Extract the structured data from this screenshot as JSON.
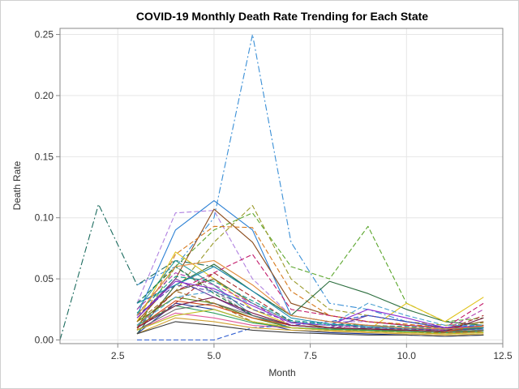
{
  "chart_data": {
    "type": "line",
    "title": "COVID-19 Monthly Death Rate Trending for Each State",
    "xlabel": "Month",
    "ylabel": "Death Rate",
    "xlim": [
      1,
      12.5
    ],
    "ylim": [
      -0.003,
      0.255
    ],
    "xticks": [
      2.5,
      5.0,
      7.5,
      10.0,
      12.5
    ],
    "xtick_labels": [
      "2.5",
      "5.0",
      "7.5",
      "10.0",
      "12.5"
    ],
    "yticks": [
      0.0,
      0.05,
      0.1,
      0.15,
      0.2,
      0.25
    ],
    "ytick_labels": [
      "0.00",
      "0.05",
      "0.10",
      "0.15",
      "0.20",
      "0.25"
    ],
    "grid": true,
    "legend": "none",
    "series": [
      {
        "color": "#3a8fd6",
        "dash": "8,3,2,3",
        "x": [
          3,
          4,
          5,
          6,
          7,
          8,
          9,
          10,
          11,
          12
        ],
        "y": [
          0.045,
          0.06,
          0.1,
          0.25,
          0.08,
          0.03,
          0.025,
          0.015,
          0.01,
          0.012
        ]
      },
      {
        "color": "#1b6b5e",
        "dash": "8,3,2,3",
        "x": [
          1,
          2,
          3,
          4,
          5,
          6,
          7,
          8,
          9,
          10,
          11,
          12
        ],
        "y": [
          0.0,
          0.111,
          0.045,
          0.065,
          0.06,
          0.04,
          0.02,
          0.015,
          0.012,
          0.01,
          0.008,
          0.01
        ]
      },
      {
        "color": "#2a7fd4",
        "dash": "",
        "x": [
          3,
          4,
          5,
          6,
          7,
          8,
          9,
          10,
          11,
          12
        ],
        "y": [
          0.02,
          0.09,
          0.114,
          0.09,
          0.02,
          0.015,
          0.012,
          0.01,
          0.008,
          0.009
        ]
      },
      {
        "color": "#5ba62c",
        "dash": "6,3",
        "x": [
          3,
          4,
          5,
          6,
          7,
          8,
          9,
          10,
          11,
          12
        ],
        "y": [
          0.01,
          0.06,
          0.09,
          0.104,
          0.06,
          0.05,
          0.093,
          0.03,
          0.015,
          0.018
        ]
      },
      {
        "color": "#b080e0",
        "dash": "6,3",
        "x": [
          3,
          4,
          5,
          6,
          7,
          8,
          9,
          10,
          11,
          12
        ],
        "y": [
          0.03,
          0.104,
          0.106,
          0.05,
          0.02,
          0.015,
          0.015,
          0.012,
          0.01,
          0.012
        ]
      },
      {
        "color": "#8b4a1a",
        "dash": "",
        "x": [
          3,
          4,
          5,
          6,
          7,
          8,
          9,
          10,
          11,
          12
        ],
        "y": [
          0.015,
          0.05,
          0.107,
          0.08,
          0.03,
          0.02,
          0.015,
          0.012,
          0.01,
          0.015
        ]
      },
      {
        "color": "#9a9a2a",
        "dash": "6,3",
        "x": [
          3,
          4,
          5,
          6,
          7,
          8,
          9,
          10,
          11,
          12
        ],
        "y": [
          0.01,
          0.04,
          0.08,
          0.11,
          0.05,
          0.025,
          0.02,
          0.015,
          0.012,
          0.014
        ]
      },
      {
        "color": "#d67a1e",
        "dash": "6,3",
        "x": [
          3,
          4,
          5,
          6,
          7,
          8,
          9,
          10,
          11,
          12
        ],
        "y": [
          0.008,
          0.07,
          0.093,
          0.092,
          0.04,
          0.02,
          0.015,
          0.013,
          0.01,
          0.012
        ]
      },
      {
        "color": "#2c6e3e",
        "dash": "",
        "x": [
          3,
          4,
          5,
          6,
          7,
          8,
          9,
          10,
          11,
          12
        ],
        "y": [
          0.005,
          0.045,
          0.062,
          0.04,
          0.02,
          0.048,
          0.038,
          0.025,
          0.015,
          0.012
        ]
      },
      {
        "color": "#888888",
        "dash": "6,3",
        "x": [
          3,
          4,
          5,
          6,
          7,
          8,
          9,
          10,
          11,
          12
        ],
        "y": [
          0.02,
          0.06,
          0.04,
          0.02,
          0.01,
          0.008,
          0.008,
          0.006,
          0.005,
          0.006
        ]
      },
      {
        "color": "#e0c21a",
        "dash": "",
        "x": [
          3,
          4,
          5,
          6,
          7,
          8,
          9,
          10,
          11,
          12
        ],
        "y": [
          0.015,
          0.072,
          0.05,
          0.025,
          0.012,
          0.01,
          0.008,
          0.03,
          0.015,
          0.035
        ]
      },
      {
        "color": "#c21a6a",
        "dash": "6,3",
        "x": [
          3,
          4,
          5,
          6,
          7,
          8,
          9,
          10,
          11,
          12
        ],
        "y": [
          0.01,
          0.04,
          0.055,
          0.07,
          0.025,
          0.02,
          0.015,
          0.012,
          0.01,
          0.03
        ]
      },
      {
        "color": "#3aa0a0",
        "dash": "",
        "x": [
          3,
          4,
          5,
          6,
          7,
          8,
          9,
          10,
          11,
          12
        ],
        "y": [
          0.025,
          0.065,
          0.045,
          0.02,
          0.01,
          0.008,
          0.01,
          0.009,
          0.008,
          0.01
        ]
      },
      {
        "color": "#6a3aa0",
        "dash": "",
        "x": [
          3,
          4,
          5,
          6,
          7,
          8,
          9,
          10,
          11,
          12
        ],
        "y": [
          0.018,
          0.05,
          0.035,
          0.02,
          0.012,
          0.01,
          0.02,
          0.015,
          0.01,
          0.01
        ]
      },
      {
        "color": "#1a3aa0",
        "dash": "",
        "x": [
          3,
          4,
          5,
          6,
          7,
          8,
          9,
          10,
          11,
          12
        ],
        "y": [
          0.005,
          0.03,
          0.025,
          0.015,
          0.008,
          0.006,
          0.005,
          0.004,
          0.003,
          0.004
        ]
      },
      {
        "color": "#0a7a3a",
        "dash": "6,3",
        "x": [
          3,
          4,
          5,
          6,
          7,
          8,
          9,
          10,
          11,
          12
        ],
        "y": [
          0.03,
          0.06,
          0.038,
          0.02,
          0.012,
          0.01,
          0.009,
          0.008,
          0.007,
          0.008
        ]
      },
      {
        "color": "#7a5a1a",
        "dash": "",
        "x": [
          3,
          4,
          5,
          6,
          7,
          8,
          9,
          10,
          11,
          12
        ],
        "y": [
          0.012,
          0.04,
          0.05,
          0.03,
          0.015,
          0.01,
          0.008,
          0.008,
          0.007,
          0.01
        ]
      },
      {
        "color": "#e05a9a",
        "dash": "",
        "x": [
          3,
          4,
          5,
          6,
          7,
          8,
          9,
          10,
          11,
          12
        ],
        "y": [
          0.008,
          0.022,
          0.018,
          0.012,
          0.01,
          0.008,
          0.007,
          0.006,
          0.005,
          0.007
        ]
      },
      {
        "color": "#5a8a1a",
        "dash": "",
        "x": [
          3,
          4,
          5,
          6,
          7,
          8,
          9,
          10,
          11,
          12
        ],
        "y": [
          0.015,
          0.035,
          0.03,
          0.018,
          0.01,
          0.009,
          0.008,
          0.007,
          0.006,
          0.008
        ]
      },
      {
        "color": "#aa2a2a",
        "dash": "6,3",
        "x": [
          3,
          4,
          5,
          6,
          7,
          8,
          9,
          10,
          11,
          12
        ],
        "y": [
          0.01,
          0.03,
          0.055,
          0.035,
          0.015,
          0.012,
          0.01,
          0.009,
          0.008,
          0.02
        ]
      },
      {
        "color": "#2a5ad0",
        "dash": "6,3",
        "x": [
          3,
          4,
          5,
          6,
          7,
          8,
          9,
          10,
          11,
          12
        ],
        "y": [
          0.0,
          0.0,
          0.0,
          0.01,
          0.012,
          0.015,
          0.02,
          0.015,
          0.01,
          0.012
        ]
      },
      {
        "color": "#d0a030",
        "dash": "",
        "x": [
          3,
          4,
          5,
          6,
          7,
          8,
          9,
          10,
          11,
          12
        ],
        "y": [
          0.005,
          0.018,
          0.015,
          0.01,
          0.008,
          0.007,
          0.006,
          0.005,
          0.004,
          0.005
        ]
      },
      {
        "color": "#4a4aa0",
        "dash": "6,3",
        "x": [
          3,
          4,
          5,
          6,
          7,
          8,
          9,
          10,
          11,
          12
        ],
        "y": [
          0.02,
          0.045,
          0.04,
          0.025,
          0.015,
          0.012,
          0.01,
          0.009,
          0.008,
          0.009
        ]
      },
      {
        "color": "#30a060",
        "dash": "",
        "x": [
          3,
          4,
          5,
          6,
          7,
          8,
          9,
          10,
          11,
          12
        ],
        "y": [
          0.012,
          0.028,
          0.022,
          0.014,
          0.01,
          0.009,
          0.008,
          0.007,
          0.006,
          0.007
        ]
      },
      {
        "color": "#b03ab0",
        "dash": "6,3",
        "x": [
          3,
          4,
          5,
          6,
          7,
          8,
          9,
          10,
          11,
          12
        ],
        "y": [
          0.025,
          0.055,
          0.045,
          0.03,
          0.012,
          0.01,
          0.012,
          0.01,
          0.008,
          0.025
        ]
      },
      {
        "color": "#6a6a6a",
        "dash": "",
        "x": [
          3,
          4,
          5,
          6,
          7,
          8,
          9,
          10,
          11,
          12
        ],
        "y": [
          0.008,
          0.025,
          0.03,
          0.02,
          0.012,
          0.01,
          0.009,
          0.008,
          0.007,
          0.008
        ]
      },
      {
        "color": "#1a8ab0",
        "dash": "",
        "x": [
          3,
          4,
          5,
          6,
          7,
          8,
          9,
          10,
          11,
          12
        ],
        "y": [
          0.03,
          0.045,
          0.06,
          0.04,
          0.018,
          0.013,
          0.011,
          0.01,
          0.009,
          0.01
        ]
      },
      {
        "color": "#a06a1a",
        "dash": "6,3",
        "x": [
          3,
          4,
          5,
          6,
          7,
          8,
          9,
          10,
          11,
          12
        ],
        "y": [
          0.015,
          0.04,
          0.03,
          0.015,
          0.01,
          0.008,
          0.007,
          0.006,
          0.006,
          0.007
        ]
      },
      {
        "color": "#d04a1a",
        "dash": "",
        "x": [
          3,
          4,
          5,
          6,
          7,
          8,
          9,
          10,
          11,
          12
        ],
        "y": [
          0.01,
          0.032,
          0.028,
          0.018,
          0.012,
          0.01,
          0.009,
          0.008,
          0.007,
          0.012
        ]
      },
      {
        "color": "#3a3a3a",
        "dash": "",
        "x": [
          3,
          4,
          5,
          6,
          7,
          8,
          9,
          10,
          11,
          12
        ],
        "y": [
          0.005,
          0.015,
          0.012,
          0.008,
          0.006,
          0.005,
          0.004,
          0.004,
          0.003,
          0.004
        ]
      },
      {
        "color": "#8a2ad0",
        "dash": "",
        "x": [
          3,
          4,
          5,
          6,
          7,
          8,
          9,
          10,
          11,
          12
        ],
        "y": [
          0.018,
          0.048,
          0.042,
          0.028,
          0.014,
          0.012,
          0.025,
          0.018,
          0.01,
          0.011
        ]
      },
      {
        "color": "#0a9a8a",
        "dash": "6,3",
        "x": [
          3,
          4,
          5,
          6,
          7,
          8,
          9,
          10,
          11,
          12
        ],
        "y": [
          0.022,
          0.052,
          0.048,
          0.032,
          0.016,
          0.013,
          0.012,
          0.011,
          0.009,
          0.01
        ]
      },
      {
        "color": "#c0c020",
        "dash": "",
        "x": [
          3,
          4,
          5,
          6,
          7,
          8,
          9,
          10,
          11,
          12
        ],
        "y": [
          0.008,
          0.02,
          0.025,
          0.015,
          0.01,
          0.008,
          0.007,
          0.006,
          0.005,
          0.006
        ]
      },
      {
        "color": "#7a1a4a",
        "dash": "",
        "x": [
          3,
          4,
          5,
          6,
          7,
          8,
          9,
          10,
          11,
          12
        ],
        "y": [
          0.01,
          0.028,
          0.035,
          0.022,
          0.012,
          0.01,
          0.009,
          0.008,
          0.007,
          0.018
        ]
      },
      {
        "color": "#4aa0d0",
        "dash": "6,3",
        "x": [
          3,
          4,
          5,
          6,
          7,
          8,
          9,
          10,
          11,
          12
        ],
        "y": [
          0.012,
          0.035,
          0.04,
          0.03,
          0.015,
          0.012,
          0.03,
          0.02,
          0.012,
          0.012
        ]
      },
      {
        "color": "#e08a3a",
        "dash": "",
        "x": [
          3,
          4,
          5,
          6,
          7,
          8,
          9,
          10,
          11,
          12
        ],
        "y": [
          0.02,
          0.06,
          0.065,
          0.045,
          0.02,
          0.015,
          0.012,
          0.01,
          0.009,
          0.011
        ]
      }
    ]
  }
}
